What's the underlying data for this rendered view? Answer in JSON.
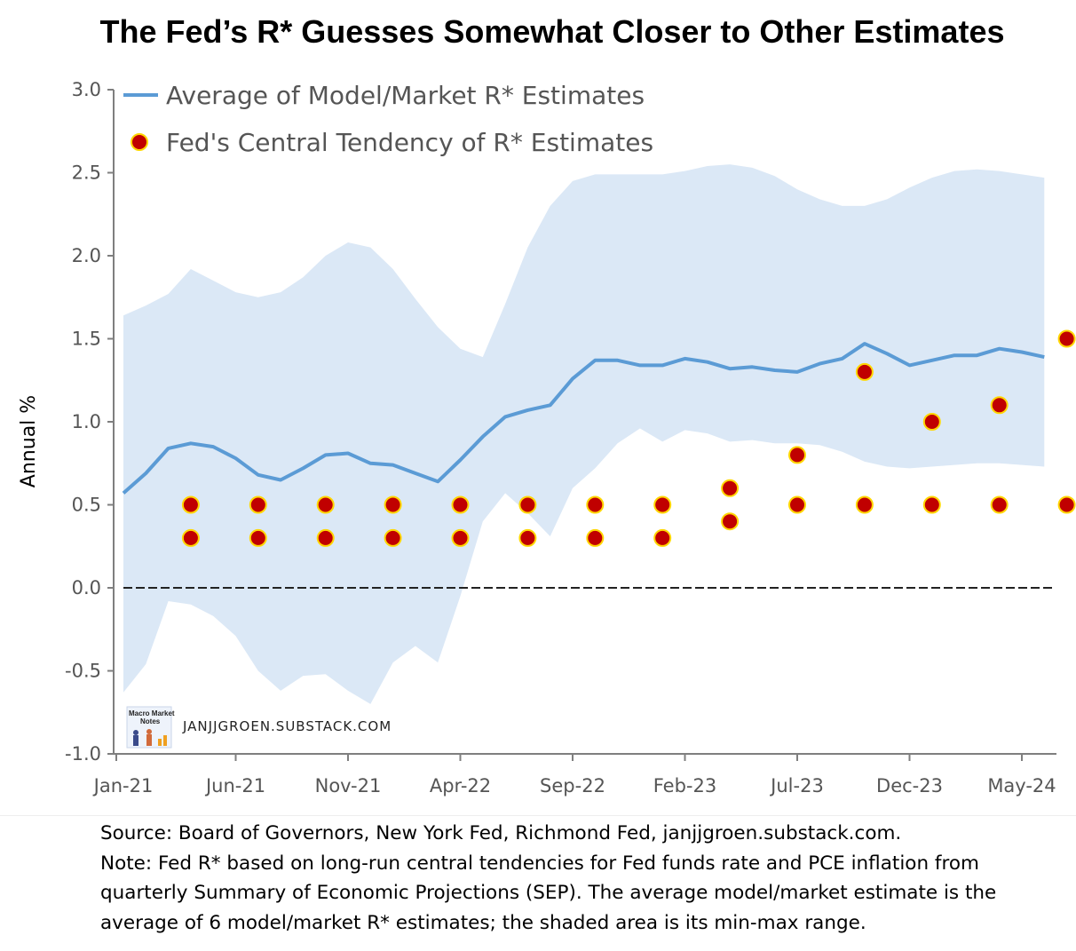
{
  "chart_data": {
    "type": "line",
    "title": "The Fed’s R* Guesses Somewhat Closer to Other Estimates",
    "ylabel": "Annual %",
    "xlabel": "",
    "ylim": [
      -1.0,
      3.0
    ],
    "yticks": [
      3.0,
      2.5,
      2.0,
      1.5,
      1.0,
      0.5,
      0.0,
      -0.5,
      -1.0
    ],
    "ytick_labels": [
      "3.0",
      "2.5",
      "2.0",
      "1.5",
      "1.0",
      "0.5",
      "0.0",
      "-0.5",
      "-1.0"
    ],
    "xtick_labels": [
      "Jan-21",
      "Jun-21",
      "Nov-21",
      "Apr-22",
      "Sep-22",
      "Feb-23",
      "Jul-23",
      "Dec-23",
      "May-24"
    ],
    "xtick_months": [
      0,
      5,
      10,
      15,
      20,
      25,
      30,
      35,
      40
    ],
    "x_months": [
      0,
      1,
      2,
      3,
      4,
      5,
      6,
      7,
      8,
      9,
      10,
      11,
      12,
      13,
      14,
      15,
      16,
      17,
      18,
      19,
      20,
      21,
      22,
      23,
      24,
      25,
      26,
      27,
      28,
      29,
      30,
      31,
      32,
      33,
      34,
      35,
      36,
      37,
      38,
      39,
      40,
      41
    ],
    "legend_position": "top-left",
    "grid": false,
    "series": [
      {
        "name": "Average of Model/Market R* Estimates",
        "type": "line",
        "color": "#5b9bd5",
        "values": [
          0.57,
          0.69,
          0.84,
          0.87,
          0.85,
          0.78,
          0.68,
          0.65,
          0.72,
          0.8,
          0.81,
          0.75,
          0.74,
          0.69,
          0.64,
          0.77,
          0.91,
          1.03,
          1.07,
          1.1,
          1.26,
          1.37,
          1.37,
          1.34,
          1.34,
          1.38,
          1.36,
          1.32,
          1.33,
          1.31,
          1.3,
          1.35,
          1.38,
          1.47,
          1.41,
          1.34,
          1.37,
          1.4,
          1.4,
          1.44,
          1.42,
          1.39
        ]
      },
      {
        "name": "Fed's Central Tendency of R* Estimates",
        "type": "scatter",
        "color": "#c00000",
        "edgecolor": "#ffd700",
        "points": [
          {
            "x": 3,
            "y": 0.5
          },
          {
            "x": 3,
            "y": 0.3
          },
          {
            "x": 6,
            "y": 0.5
          },
          {
            "x": 6,
            "y": 0.3
          },
          {
            "x": 9,
            "y": 0.5
          },
          {
            "x": 9,
            "y": 0.3
          },
          {
            "x": 12,
            "y": 0.5
          },
          {
            "x": 12,
            "y": 0.3
          },
          {
            "x": 15,
            "y": 0.5
          },
          {
            "x": 15,
            "y": 0.3
          },
          {
            "x": 18,
            "y": 0.5
          },
          {
            "x": 18,
            "y": 0.3
          },
          {
            "x": 21,
            "y": 0.5
          },
          {
            "x": 21,
            "y": 0.3
          },
          {
            "x": 24,
            "y": 0.5
          },
          {
            "x": 24,
            "y": 0.3
          },
          {
            "x": 27,
            "y": 0.6
          },
          {
            "x": 27,
            "y": 0.4
          },
          {
            "x": 30,
            "y": 0.8
          },
          {
            "x": 30,
            "y": 0.5
          },
          {
            "x": 33,
            "y": 1.3
          },
          {
            "x": 33,
            "y": 0.5
          },
          {
            "x": 36,
            "y": 1.0
          },
          {
            "x": 36,
            "y": 0.5
          },
          {
            "x": 39,
            "y": 1.1
          },
          {
            "x": 39,
            "y": 0.5
          },
          {
            "x": 42,
            "y": 1.5
          },
          {
            "x": 42,
            "y": 0.5
          }
        ]
      }
    ],
    "range_band": {
      "color": "#dbe8f6",
      "upper": [
        1.64,
        1.7,
        1.77,
        1.92,
        1.85,
        1.78,
        1.75,
        1.78,
        1.87,
        2.0,
        2.08,
        2.05,
        1.92,
        1.74,
        1.57,
        1.44,
        1.39,
        1.71,
        2.05,
        2.3,
        2.45,
        2.49,
        2.49,
        2.49,
        2.49,
        2.51,
        2.54,
        2.55,
        2.53,
        2.48,
        2.4,
        2.34,
        2.3,
        2.3,
        2.34,
        2.41,
        2.47,
        2.51,
        2.52,
        2.51,
        2.49,
        2.47
      ],
      "lower": [
        -0.63,
        -0.46,
        -0.08,
        -0.1,
        -0.17,
        -0.29,
        -0.5,
        -0.62,
        -0.53,
        -0.52,
        -0.62,
        -0.7,
        -0.45,
        -0.35,
        -0.45,
        -0.05,
        0.4,
        0.57,
        0.45,
        0.31,
        0.6,
        0.72,
        0.87,
        0.96,
        0.88,
        0.95,
        0.93,
        0.88,
        0.89,
        0.87,
        0.87,
        0.86,
        0.82,
        0.76,
        0.73,
        0.72,
        0.73,
        0.74,
        0.75,
        0.75,
        0.74,
        0.73
      ]
    },
    "reference_line": {
      "y": 0.0,
      "style": "dashed"
    }
  },
  "watermark": {
    "text": "JANJJGROEN.SUBSTACK.COM",
    "logo_text": [
      "Macro Market",
      "Notes"
    ]
  },
  "notes": {
    "source": "Source: Board of Governors, New York Fed, Richmond Fed, janjjgroen.substack.com.",
    "note_lines": [
      "Note: Fed R* based on long-run central tendencies for Fed funds rate and PCE inflation from",
      "quarterly Summary of Economic Projections (SEP). The average model/market estimate is the",
      "average of 6 model/market R* estimates; the shaded area is its  min-max range."
    ]
  },
  "colors": {
    "axis": "#7f7f7f",
    "line": "#5b9bd5",
    "band": "#dbe8f6",
    "dot_fill": "#c00000",
    "dot_edge": "#ffd700"
  }
}
